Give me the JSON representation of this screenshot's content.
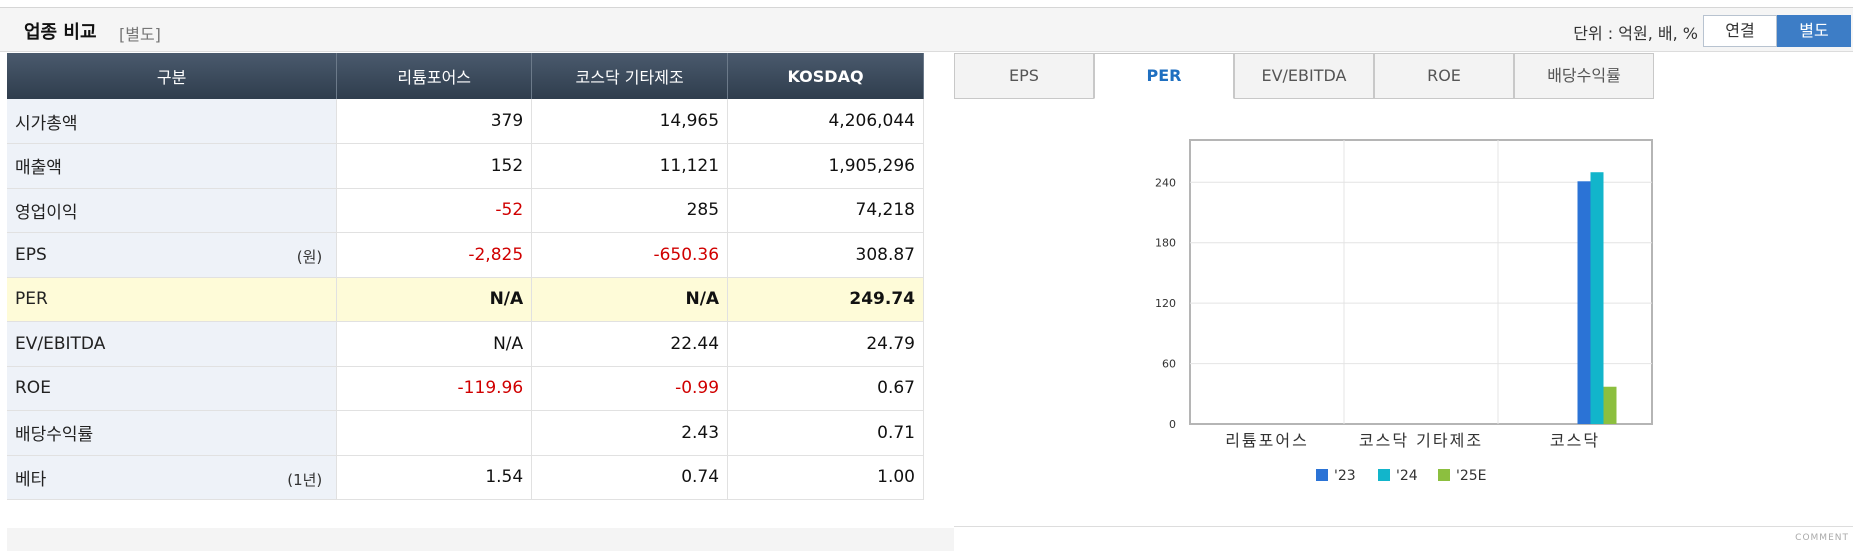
{
  "header": {
    "title": "업종 비교",
    "subtitle": "[별도]",
    "unit": "단위 : 억원, 배, %",
    "toggle_consolidated": "연결",
    "toggle_separate": "별도"
  },
  "table": {
    "columns": [
      "구분",
      "리튬포어스",
      "코스닥 기타제조",
      "KOSDAQ"
    ],
    "rows": [
      {
        "label": "시가총액",
        "sub": "",
        "values": [
          "379",
          "14,965",
          "4,206,044"
        ],
        "neg": [
          false,
          false,
          false
        ]
      },
      {
        "label": "매출액",
        "sub": "",
        "values": [
          "152",
          "11,121",
          "1,905,296"
        ],
        "neg": [
          false,
          false,
          false
        ]
      },
      {
        "label": "영업이익",
        "sub": "",
        "values": [
          "-52",
          "285",
          "74,218"
        ],
        "neg": [
          true,
          false,
          false
        ]
      },
      {
        "label": "EPS",
        "sub": "(원)",
        "values": [
          "-2,825",
          "-650.36",
          "308.87"
        ],
        "neg": [
          true,
          true,
          false
        ]
      },
      {
        "label": "PER",
        "sub": "",
        "values": [
          "N/A",
          "N/A",
          "249.74"
        ],
        "neg": [
          false,
          false,
          false
        ]
      },
      {
        "label": "EV/EBITDA",
        "sub": "",
        "values": [
          "N/A",
          "22.44",
          "24.79"
        ],
        "neg": [
          false,
          false,
          false
        ]
      },
      {
        "label": "ROE",
        "sub": "",
        "values": [
          "-119.96",
          "-0.99",
          "0.67"
        ],
        "neg": [
          true,
          true,
          false
        ]
      },
      {
        "label": "배당수익률",
        "sub": "",
        "values": [
          "",
          "2.43",
          "0.71"
        ],
        "neg": [
          false,
          false,
          false
        ]
      },
      {
        "label": "베타",
        "sub": "(1년)",
        "values": [
          "1.54",
          "0.74",
          "1.00"
        ],
        "neg": [
          false,
          false,
          false
        ]
      }
    ]
  },
  "tabs": [
    "EPS",
    "PER",
    "EV/EBITDA",
    "ROE",
    "배당수익률"
  ],
  "active_tab": "PER",
  "colors": {
    "s23": "#2b73d6",
    "s24": "#12b5cb",
    "s25": "#8cbf3f"
  },
  "chart_data": {
    "type": "bar",
    "categories": [
      "리튬포어스",
      "코스닥 기타제조",
      "코스닥"
    ],
    "series": [
      {
        "name": "'23",
        "values": [
          null,
          null,
          241
        ]
      },
      {
        "name": "'24",
        "values": [
          null,
          null,
          250
        ]
      },
      {
        "name": "'25E",
        "values": [
          null,
          null,
          37
        ]
      }
    ],
    "yticks": [
      0,
      60,
      120,
      180,
      240
    ],
    "ylim": [
      0,
      282
    ],
    "grid": true,
    "legend_position": "bottom"
  },
  "footer": {
    "comment": "COMMENT"
  }
}
